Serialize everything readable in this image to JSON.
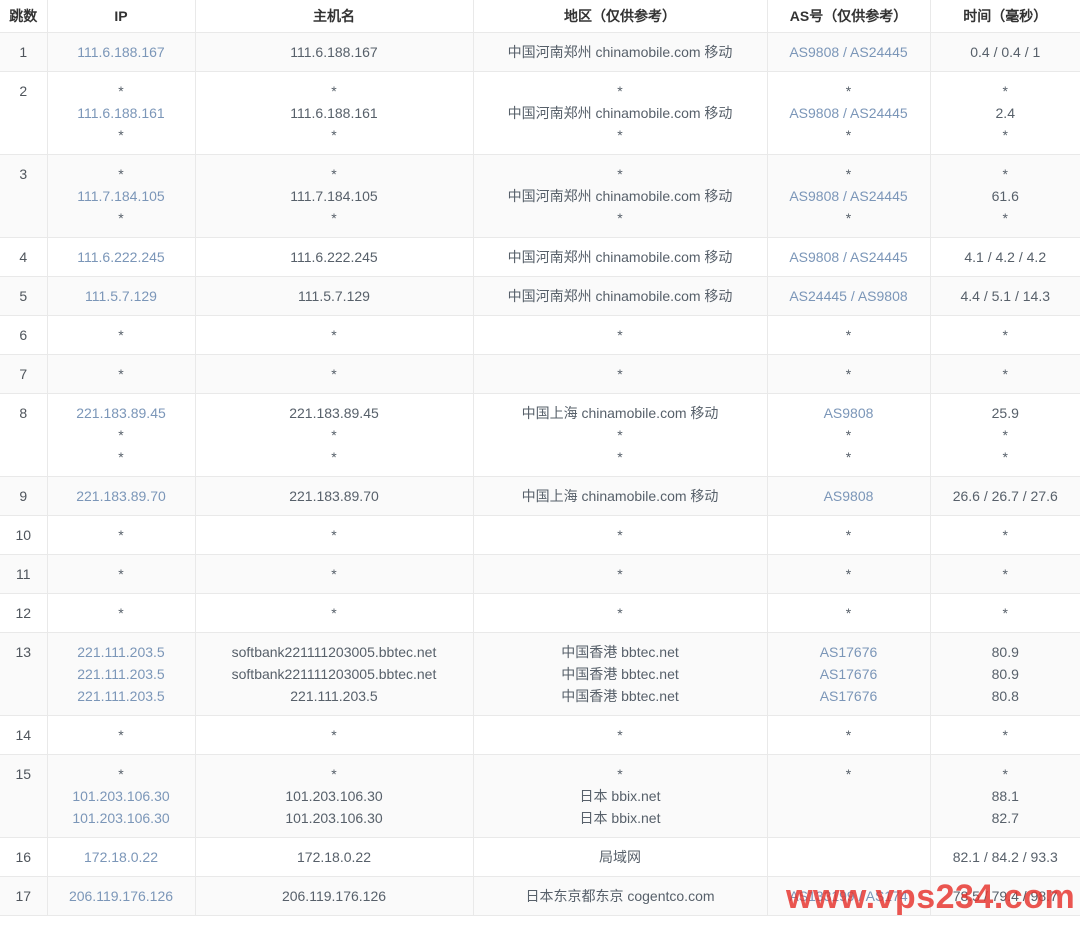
{
  "watermark": {
    "text": "www.vps234.com",
    "color": "#e7312b"
  },
  "table": {
    "link_color": "#7b96b8",
    "stripe_color": "#fafafa",
    "columns": [
      {
        "key": "hop",
        "label": "跳数"
      },
      {
        "key": "ip",
        "label": "IP"
      },
      {
        "key": "hostname",
        "label": "主机名"
      },
      {
        "key": "region",
        "label": "地区（仅供参考）"
      },
      {
        "key": "asn",
        "label": "AS号（仅供参考）"
      },
      {
        "key": "time",
        "label": "时间（毫秒）"
      }
    ],
    "rows": [
      {
        "hop": "1",
        "ip": [
          {
            "t": "111.6.188.167",
            "link": true
          }
        ],
        "hostname": [
          "111.6.188.167"
        ],
        "region": [
          "中国河南郑州 chinamobile.com 移动"
        ],
        "asn": [
          {
            "t": "AS9808 / AS24445",
            "link": true
          }
        ],
        "time": [
          "0.4 / 0.4 / 1"
        ]
      },
      {
        "hop": "2",
        "ip": [
          "*",
          {
            "t": "111.6.188.161",
            "link": true
          },
          "*"
        ],
        "hostname": [
          "*",
          "111.6.188.161",
          "*"
        ],
        "region": [
          "*",
          "中国河南郑州 chinamobile.com 移动",
          "*"
        ],
        "asn": [
          "*",
          {
            "t": "AS9808 / AS24445",
            "link": true
          },
          "*"
        ],
        "time": [
          "*",
          "2.4",
          "*"
        ]
      },
      {
        "hop": "3",
        "ip": [
          "*",
          {
            "t": "111.7.184.105",
            "link": true
          },
          "*"
        ],
        "hostname": [
          "*",
          "111.7.184.105",
          "*"
        ],
        "region": [
          "*",
          "中国河南郑州 chinamobile.com 移动",
          "*"
        ],
        "asn": [
          "*",
          {
            "t": "AS9808 / AS24445",
            "link": true
          },
          "*"
        ],
        "time": [
          "*",
          "61.6",
          "*"
        ]
      },
      {
        "hop": "4",
        "ip": [
          {
            "t": "111.6.222.245",
            "link": true
          }
        ],
        "hostname": [
          "111.6.222.245"
        ],
        "region": [
          "中国河南郑州 chinamobile.com 移动"
        ],
        "asn": [
          {
            "t": "AS9808 / AS24445",
            "link": true
          }
        ],
        "time": [
          "4.1 / 4.2 / 4.2"
        ]
      },
      {
        "hop": "5",
        "ip": [
          {
            "t": "111.5.7.129",
            "link": true
          }
        ],
        "hostname": [
          "111.5.7.129"
        ],
        "region": [
          "中国河南郑州 chinamobile.com 移动"
        ],
        "asn": [
          {
            "t": "AS24445 / AS9808",
            "link": true
          }
        ],
        "time": [
          "4.4 / 5.1 / 14.3"
        ]
      },
      {
        "hop": "6",
        "ip": [
          "*"
        ],
        "hostname": [
          "*"
        ],
        "region": [
          "*"
        ],
        "asn": [
          "*"
        ],
        "time": [
          "*"
        ]
      },
      {
        "hop": "7",
        "ip": [
          "*"
        ],
        "hostname": [
          "*"
        ],
        "region": [
          "*"
        ],
        "asn": [
          "*"
        ],
        "time": [
          "*"
        ]
      },
      {
        "hop": "8",
        "ip": [
          {
            "t": "221.183.89.45",
            "link": true
          },
          "*",
          "*"
        ],
        "hostname": [
          "221.183.89.45",
          "*",
          "*"
        ],
        "region": [
          "中国上海 chinamobile.com 移动",
          "*",
          "*"
        ],
        "asn": [
          {
            "t": "AS9808",
            "link": true
          },
          "*",
          "*"
        ],
        "time": [
          "25.9",
          "*",
          "*"
        ]
      },
      {
        "hop": "9",
        "ip": [
          {
            "t": "221.183.89.70",
            "link": true
          }
        ],
        "hostname": [
          "221.183.89.70"
        ],
        "region": [
          "中国上海 chinamobile.com 移动"
        ],
        "asn": [
          {
            "t": "AS9808",
            "link": true
          }
        ],
        "time": [
          "26.6 / 26.7 / 27.6"
        ]
      },
      {
        "hop": "10",
        "ip": [
          "*"
        ],
        "hostname": [
          "*"
        ],
        "region": [
          "*"
        ],
        "asn": [
          "*"
        ],
        "time": [
          "*"
        ]
      },
      {
        "hop": "11",
        "ip": [
          "*"
        ],
        "hostname": [
          "*"
        ],
        "region": [
          "*"
        ],
        "asn": [
          "*"
        ],
        "time": [
          "*"
        ]
      },
      {
        "hop": "12",
        "ip": [
          "*"
        ],
        "hostname": [
          "*"
        ],
        "region": [
          "*"
        ],
        "asn": [
          "*"
        ],
        "time": [
          "*"
        ]
      },
      {
        "hop": "13",
        "ip": [
          {
            "t": "221.111.203.5",
            "link": true
          },
          {
            "t": "221.111.203.5",
            "link": true
          },
          {
            "t": "221.111.203.5",
            "link": true
          }
        ],
        "hostname": [
          "softbank221111203005.bbtec.net",
          "softbank221111203005.bbtec.net",
          "221.111.203.5"
        ],
        "region": [
          "中国香港 bbtec.net",
          "中国香港 bbtec.net",
          "中国香港 bbtec.net"
        ],
        "asn": [
          {
            "t": "AS17676",
            "link": true
          },
          {
            "t": "AS17676",
            "link": true
          },
          {
            "t": "AS17676",
            "link": true
          }
        ],
        "time": [
          "80.9",
          "80.9",
          "80.8"
        ]
      },
      {
        "hop": "14",
        "ip": [
          "*"
        ],
        "hostname": [
          "*"
        ],
        "region": [
          "*"
        ],
        "asn": [
          "*"
        ],
        "time": [
          "*"
        ]
      },
      {
        "hop": "15",
        "ip": [
          "*",
          {
            "t": "101.203.106.30",
            "link": true
          },
          {
            "t": "101.203.106.30",
            "link": true
          }
        ],
        "hostname": [
          "*",
          "101.203.106.30",
          "101.203.106.30"
        ],
        "region": [
          "*",
          "日本 bbix.net",
          "日本 bbix.net"
        ],
        "asn": [
          "*",
          "",
          ""
        ],
        "time": [
          "*",
          "88.1",
          "82.7"
        ]
      },
      {
        "hop": "16",
        "ip": [
          {
            "t": "172.18.0.22",
            "link": true
          }
        ],
        "hostname": [
          "172.18.0.22"
        ],
        "region": [
          "局域网"
        ],
        "asn": [
          ""
        ],
        "time": [
          "82.1 / 84.2 / 93.3"
        ]
      },
      {
        "hop": "17",
        "ip": [
          {
            "t": "206.119.176.126",
            "link": true
          }
        ],
        "hostname": [
          "206.119.176.126"
        ],
        "region": [
          "日本东京都东京 cogentco.com"
        ],
        "asn": [
          {
            "t": "AS133199 / AS174",
            "link": true
          }
        ],
        "time": [
          "78.5 / 79.4 / 98.7"
        ]
      }
    ]
  }
}
